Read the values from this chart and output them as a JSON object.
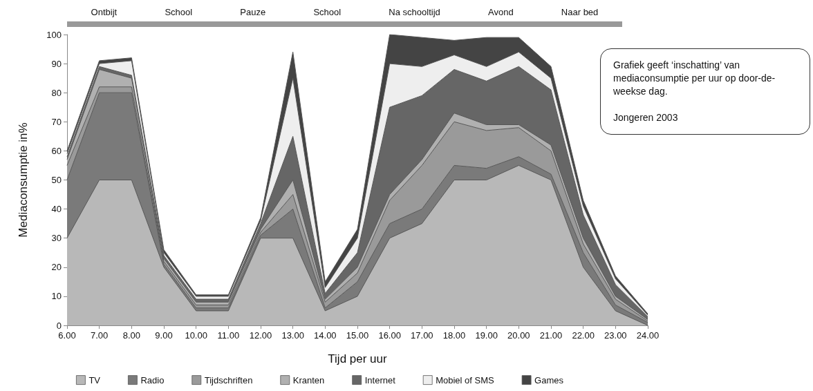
{
  "chart_data": [
    {
      "type": "area",
      "stacked": true,
      "xlabel": "Tijd per uur",
      "ylabel": "Mediaconsumptie in%",
      "legend": "bottom",
      "grid": false,
      "marker": "none",
      "x": [
        6,
        7,
        8,
        9,
        10,
        11,
        12,
        13,
        14,
        15,
        16,
        17,
        18,
        19,
        20,
        21,
        22,
        23,
        24
      ],
      "xlim": [
        6,
        24
      ],
      "xticks": [
        {
          "value": 6,
          "label": "6.00"
        },
        {
          "value": 7,
          "label": "7.00"
        },
        {
          "value": 8,
          "label": "8.00"
        },
        {
          "value": 9,
          "label": "9.00"
        },
        {
          "value": 10,
          "label": "10.00"
        },
        {
          "value": 11,
          "label": "11.00"
        },
        {
          "value": 12,
          "label": "12.00"
        },
        {
          "value": 13,
          "label": "13.00"
        },
        {
          "value": 14,
          "label": "14.00"
        },
        {
          "value": 15,
          "label": "15.00"
        },
        {
          "value": 16,
          "label": "16.00"
        },
        {
          "value": 17,
          "label": "17.00"
        },
        {
          "value": 18,
          "label": "18.00"
        },
        {
          "value": 19,
          "label": "19.00"
        },
        {
          "value": 20,
          "label": "20.00"
        },
        {
          "value": 21,
          "label": "21.00"
        },
        {
          "value": 22,
          "label": "22.00"
        },
        {
          "value": 23,
          "label": "23.00"
        },
        {
          "value": 24,
          "label": "24.00"
        }
      ],
      "ylim": [
        0,
        100
      ],
      "yticks": [
        0,
        10,
        20,
        30,
        40,
        50,
        60,
        70,
        80,
        90,
        100
      ],
      "series": [
        {
          "name": "TV",
          "color": "#b8b8b8",
          "values": [
            30,
            50,
            50,
            20,
            5,
            5,
            30,
            30,
            5,
            10,
            30,
            35,
            50,
            50,
            55,
            50,
            20,
            5,
            0
          ]
        },
        {
          "name": "Radio",
          "color": "#7a7a7a",
          "values": [
            20,
            30,
            30,
            1,
            1,
            1,
            1,
            10,
            1,
            5,
            5,
            5,
            5,
            4,
            3,
            2,
            5,
            2,
            1
          ]
        },
        {
          "name": "Tijdschriften",
          "color": "#9a9a9a",
          "values": [
            5,
            2,
            2,
            1,
            1,
            1,
            1,
            5,
            2,
            3,
            8,
            15,
            15,
            13,
            10,
            8,
            3,
            2,
            0.5
          ]
        },
        {
          "name": "Kranten",
          "color": "#b0b0b0",
          "values": [
            2,
            6,
            3,
            1,
            1,
            1,
            1,
            5,
            1,
            2,
            2,
            2,
            3,
            2,
            1,
            2,
            2,
            1,
            0.5
          ]
        },
        {
          "name": "Internet",
          "color": "#666666",
          "values": [
            1,
            1,
            1,
            1,
            1,
            1,
            2,
            15,
            2,
            5,
            30,
            22,
            15,
            15,
            20,
            19,
            8,
            4,
            1
          ]
        },
        {
          "name": "Mobiel of SMS",
          "color": "#eeeeee",
          "values": [
            1,
            1,
            5,
            1,
            1,
            1,
            1,
            20,
            2,
            5,
            15,
            10,
            5,
            5,
            5,
            4,
            3,
            2,
            0.5
          ]
        },
        {
          "name": "Games",
          "color": "#444444",
          "values": [
            1,
            1,
            1,
            1,
            0.5,
            0.5,
            1,
            9,
            2,
            3,
            10,
            10,
            5,
            10,
            5,
            4,
            2,
            1,
            0.5
          ]
        }
      ],
      "annotations": [
        "Ontbijt",
        "School",
        "Pauze",
        "School",
        "Na schooltijd",
        "Avond",
        "Naar bed"
      ]
    },
    {
      "type": "other",
      "annotations": [
        "Grafiek geeft ‘inschatting’ van mediaconsumptie per uur op door-de-weekse dag.",
        "Jongeren 2003"
      ]
    }
  ]
}
